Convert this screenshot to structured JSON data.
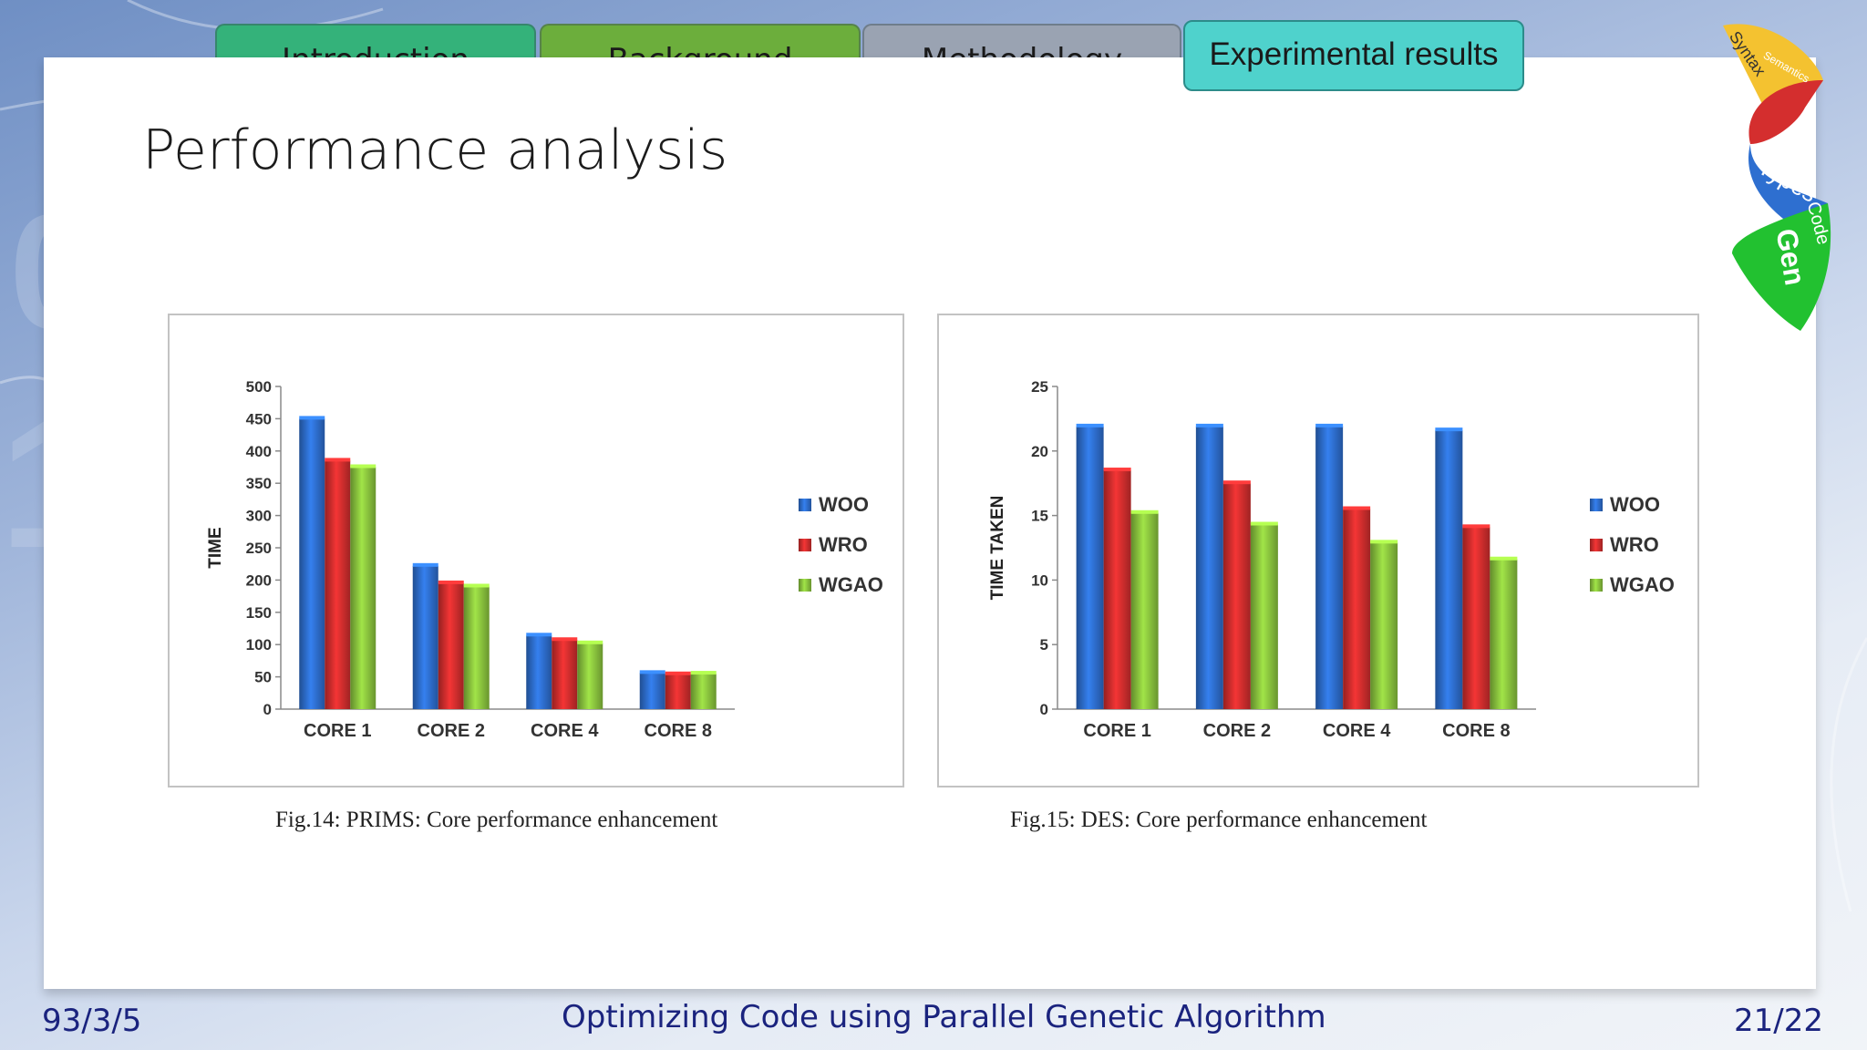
{
  "nav": {
    "tabs": [
      "Introduction",
      "Background",
      "Methodology"
    ],
    "active_tab": "Experimental results"
  },
  "slide": {
    "title": "Performance analysis"
  },
  "logo": {
    "words": [
      "Syntax",
      "Semantics",
      "Types",
      "Code",
      "Gen"
    ]
  },
  "footer": {
    "date": "93/3/5",
    "title": "Optimizing Code using Parallel Genetic Algorithm",
    "page": "21/22"
  },
  "colors": {
    "woo": "#2e6fd0",
    "wro": "#d42e2e",
    "wgao": "#8cc63f"
  },
  "chart_data": [
    {
      "type": "bar",
      "caption": "Fig.14: PRIMS: Core performance enhancement",
      "categories": [
        "CORE 1",
        "CORE 2",
        "CORE 4",
        "CORE 8"
      ],
      "series": [
        {
          "name": "WOO",
          "values": [
            450,
            222,
            114,
            56
          ]
        },
        {
          "name": "WRO",
          "values": [
            385,
            195,
            107,
            54
          ]
        },
        {
          "name": "WGAO",
          "values": [
            375,
            190,
            102,
            55
          ]
        }
      ],
      "ylabel": "TIME",
      "ylim": [
        0,
        500
      ],
      "yticks": [
        0,
        50,
        100,
        150,
        200,
        250,
        300,
        350,
        400,
        450,
        500
      ],
      "legend": "right",
      "grid": false
    },
    {
      "type": "bar",
      "caption": "Fig.15: DES: Core performance enhancement",
      "categories": [
        "CORE 1",
        "CORE 2",
        "CORE 4",
        "CORE 8"
      ],
      "series": [
        {
          "name": "WOO",
          "values": [
            21.9,
            21.9,
            21.9,
            21.6
          ]
        },
        {
          "name": "WRO",
          "values": [
            18.5,
            17.5,
            15.5,
            14.1
          ]
        },
        {
          "name": "WGAO",
          "values": [
            15.2,
            14.3,
            12.9,
            11.6
          ]
        }
      ],
      "ylabel": "TIME TAKEN",
      "ylim": [
        0,
        25
      ],
      "yticks": [
        0,
        5,
        10,
        15,
        20,
        25
      ],
      "legend": "right",
      "grid": false
    }
  ]
}
